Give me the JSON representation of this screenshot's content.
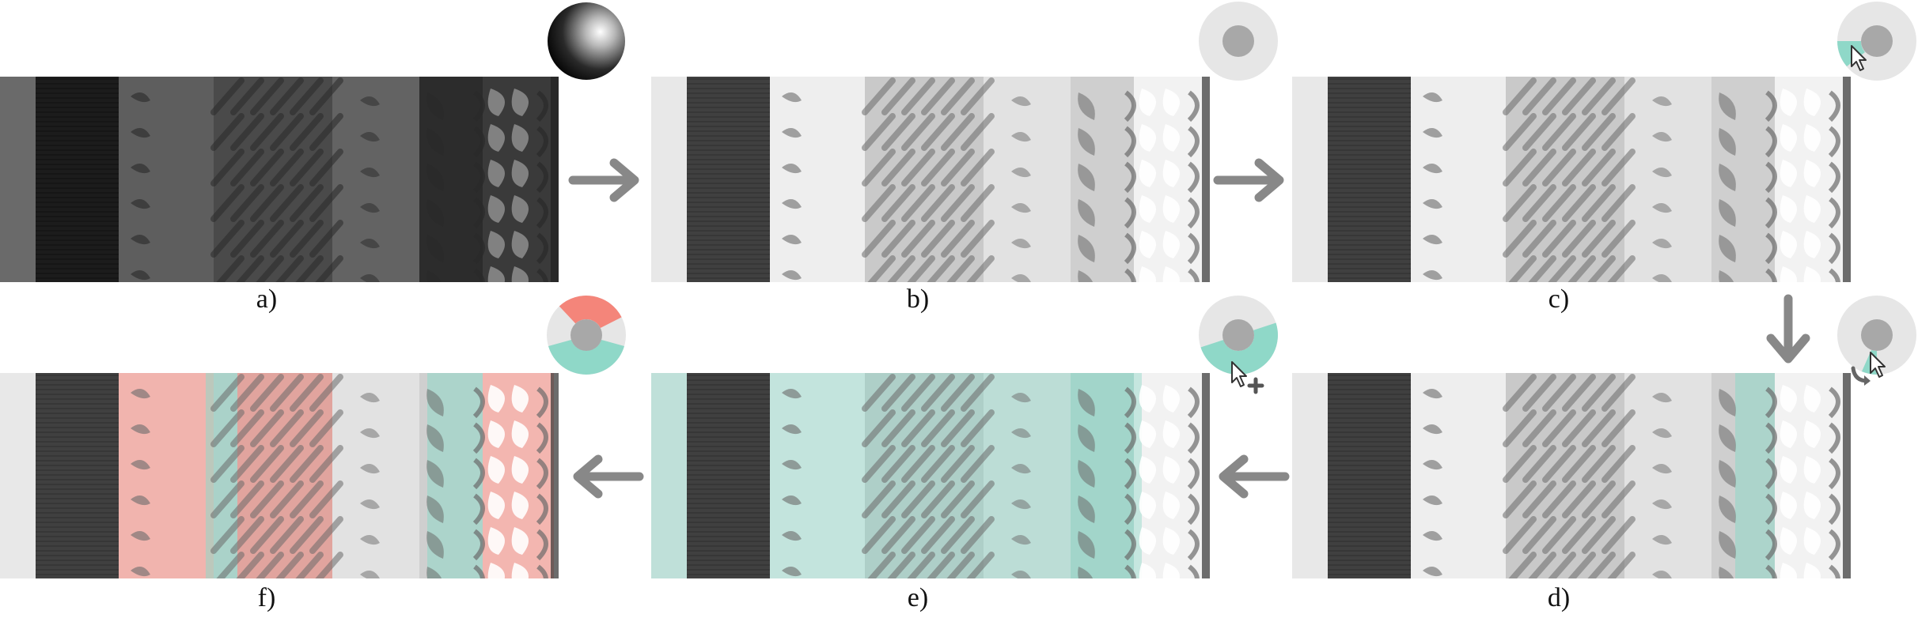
{
  "panels": [
    {
      "label": "a)",
      "style": "dark",
      "highlights": []
    },
    {
      "label": "b)",
      "style": "light",
      "highlights": []
    },
    {
      "label": "c)",
      "style": "light",
      "highlights": []
    },
    {
      "label": "d)",
      "style": "light",
      "highlights": [
        {
          "color": "#8fd8c8",
          "band": "right"
        }
      ]
    },
    {
      "label": "e)",
      "style": "light",
      "highlights": [
        {
          "color": "#8fd8c8",
          "band": "wide"
        }
      ]
    },
    {
      "label": "f)",
      "style": "light",
      "highlights": [
        {
          "color": "#f4857a",
          "band": "red"
        },
        {
          "color": "#8fd8c8",
          "band": "teal"
        }
      ]
    }
  ],
  "widgets": [
    {
      "panel": "a)",
      "kind": "sphere",
      "icon": "shaded-sphere-icon"
    },
    {
      "panel": "b)",
      "kind": "ring",
      "icon": "ring-widget-icon"
    },
    {
      "panel": "c)",
      "kind": "ring-selection",
      "icon": "ring-selection-icon",
      "cursor": "pointer-cursor-icon"
    },
    {
      "panel": "d)",
      "kind": "ring-rotate",
      "icon": "ring-rotate-icon",
      "cursor": "pointer-cursor-icon"
    },
    {
      "panel": "e)",
      "kind": "ring-add",
      "icon": "ring-add-icon",
      "cursor": "pointer-plus-cursor-icon"
    },
    {
      "panel": "f)",
      "kind": "ring-two-colors",
      "icon": "ring-two-color-icon"
    }
  ],
  "colors": {
    "teal": "#8fd8c8",
    "red": "#f4857a",
    "ring": "#e6e6e6",
    "hub": "#a8a8a8",
    "arrow": "#888888"
  },
  "flow": [
    "a)",
    "b)",
    "c)",
    "d)",
    "e)",
    "f)"
  ]
}
